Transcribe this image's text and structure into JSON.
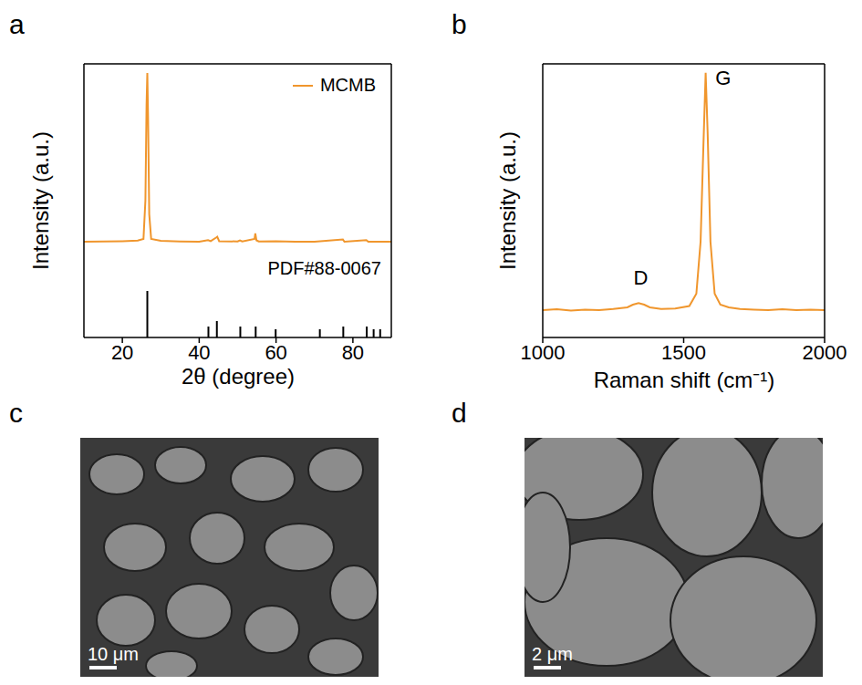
{
  "chart_data": [
    {
      "panel": "a",
      "type": "line",
      "x_label": "2θ (degree)",
      "y_label": "Intensity (a.u.)",
      "xlim": [
        10,
        90
      ],
      "xticks": [
        20,
        40,
        60,
        80
      ],
      "ylim": [
        0,
        100
      ],
      "tick_labels": "x",
      "legend": "upper right",
      "series": [
        {
          "name": "MCMB",
          "color": "#f0962d",
          "x": [
            10,
            15,
            20,
            24,
            25.5,
            26,
            26.3,
            26.5,
            26.7,
            27,
            27.5,
            30,
            35,
            40,
            42.3,
            43,
            44.4,
            44.7,
            45.2,
            50,
            50.6,
            51.2,
            54.4,
            54.6,
            54.9,
            55.5,
            60,
            65,
            70,
            77.4,
            77.8,
            83.5,
            84,
            90
          ],
          "values": [
            35,
            35.1,
            35.2,
            35.4,
            36,
            50,
            85,
            96.7,
            80,
            45,
            36,
            35.3,
            35.1,
            35,
            35.6,
            35.2,
            36.5,
            36.8,
            35.2,
            35.1,
            35.5,
            35.1,
            36,
            38,
            35.5,
            35.1,
            35.2,
            35,
            35,
            35.8,
            35,
            35.6,
            35,
            35
          ]
        },
        {
          "name": "PDF#88-0067",
          "type": "stick",
          "color": "#000000",
          "x": [
            26.5,
            42.4,
            44.6,
            50.7,
            54.7,
            59.9,
            71.4,
            77.5,
            83.6,
            85.4,
            87.1
          ],
          "values": [
            17,
            4,
            6,
            4,
            4,
            3,
            3,
            4,
            4,
            3,
            3
          ]
        }
      ]
    },
    {
      "panel": "b",
      "type": "line",
      "x_label": "Raman shift (cm⁻¹)",
      "y_label": "Intensity (a.u.)",
      "xlim": [
        1000,
        2000
      ],
      "xticks": [
        1000,
        1500,
        2000
      ],
      "ylim": [
        0,
        100
      ],
      "tick_labels": "x",
      "series": [
        {
          "name": "MCMB",
          "color": "#f0962d",
          "x": [
            1000,
            1050,
            1100,
            1150,
            1200,
            1250,
            1300,
            1320,
            1340,
            1360,
            1380,
            1420,
            1470,
            1520,
            1545,
            1560,
            1570,
            1578,
            1585,
            1595,
            1610,
            1630,
            1660,
            1700,
            1750,
            1800,
            1850,
            1900,
            1950,
            2000
          ],
          "values": [
            10,
            10.3,
            9.8,
            10.2,
            10,
            10.4,
            11,
            12,
            12.6,
            12,
            11,
            10.4,
            10.6,
            11.5,
            16,
            35,
            70,
            96.7,
            75,
            35,
            16,
            12,
            11,
            10.4,
            10.2,
            10,
            10.3,
            10,
            10.2,
            10
          ]
        }
      ],
      "annotations": [
        {
          "text": "D",
          "x": 1348,
          "y": 22
        },
        {
          "text": "G",
          "x": 1640,
          "y": 95
        }
      ]
    },
    {
      "panel": "c",
      "type": "image",
      "scale_bar": "10 μm"
    },
    {
      "panel": "d",
      "type": "image",
      "scale_bar": "2 μm"
    }
  ]
}
